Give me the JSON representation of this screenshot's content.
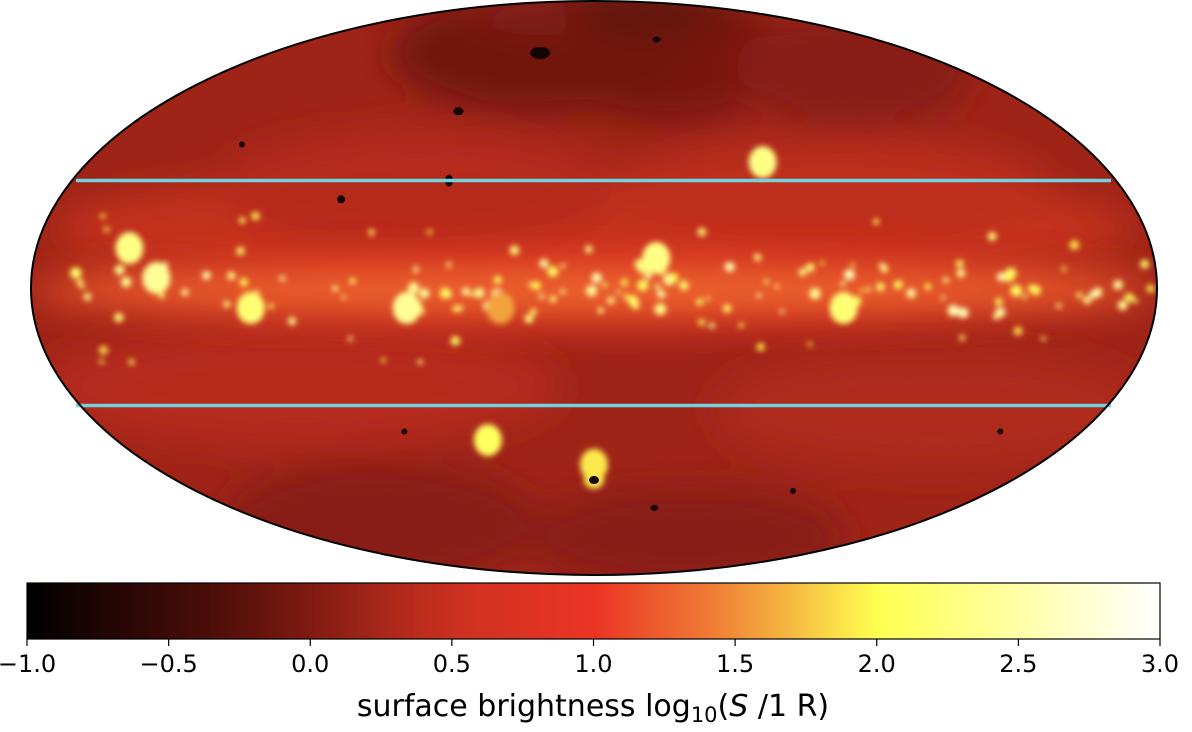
{
  "chart_data": {
    "type": "heatmap",
    "projection": "Mollweide all-sky map",
    "colormap": "hot",
    "colorbar": {
      "label_prefix": "surface brightness  log",
      "label_sub": "10",
      "label_open": "(",
      "label_var": "S",
      "label_suffix": " /1 R)",
      "range": [
        -1.0,
        3.0
      ],
      "ticks": [
        -1.0,
        -0.5,
        0.0,
        0.5,
        1.0,
        1.5,
        2.0,
        2.5,
        3.0
      ],
      "tick_labels": [
        "−1.0",
        "−0.5",
        "0.0",
        "0.5",
        "1.0",
        "1.5",
        "2.0",
        "2.5",
        "3.0"
      ],
      "orientation": "horizontal",
      "placement": "bottom"
    },
    "overlay_lines": {
      "count": 2,
      "orientation": "horizontal",
      "color": "#6fd3e0",
      "symmetric_about_equator": true
    },
    "background_level": 0.2,
    "features": [
      {
        "lon": 0,
        "lat": 0,
        "value": 1.5,
        "note": "bright galactic plane band"
      },
      {
        "lon": 150,
        "lat": 8,
        "value": 2.3
      },
      {
        "lon": 140,
        "lat": 2,
        "value": 2.4
      },
      {
        "lon": 110,
        "lat": -4,
        "value": 2.2
      },
      {
        "lon": 60,
        "lat": -4,
        "value": 2.4
      },
      {
        "lon": 30,
        "lat": -4,
        "value": 1.6
      },
      {
        "lon": -20,
        "lat": 6,
        "value": 2.3
      },
      {
        "lon": -80,
        "lat": -4,
        "value": 2.2
      },
      {
        "lon": 0,
        "lat": -38,
        "value": 1.9
      },
      {
        "lon": 40,
        "lat": -32,
        "value": 2.1
      },
      {
        "lon": -60,
        "lat": 26,
        "value": 2.3
      }
    ]
  }
}
